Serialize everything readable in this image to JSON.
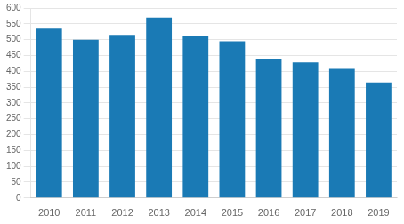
{
  "chart_data": {
    "type": "bar",
    "categories": [
      "2010",
      "2011",
      "2012",
      "2013",
      "2014",
      "2015",
      "2016",
      "2017",
      "2018",
      "2019"
    ],
    "values": [
      535,
      500,
      515,
      570,
      510,
      495,
      440,
      428,
      408,
      365
    ],
    "color": "#1a7ab5",
    "ylim": [
      0,
      600
    ],
    "yticks": [
      0,
      50,
      100,
      150,
      200,
      250,
      300,
      350,
      400,
      450,
      500,
      550,
      600
    ],
    "grid": true
  }
}
